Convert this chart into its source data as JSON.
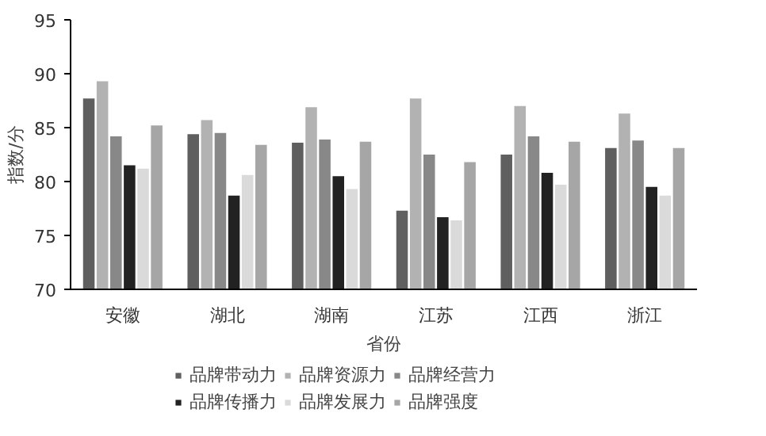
{
  "chart_data": {
    "type": "bar",
    "xlabel": "省份",
    "ylabel": "指数/分",
    "categories": [
      "安徽",
      "湖北",
      "湖南",
      "江苏",
      "江西",
      "浙江"
    ],
    "ylim": [
      70,
      95
    ],
    "yticks": [
      70,
      75,
      80,
      85,
      90,
      95
    ],
    "grid": false,
    "legend": "bottom",
    "series": [
      {
        "name": "品牌带动力",
        "color": "#5f5f5f",
        "values": [
          87.7,
          84.4,
          83.6,
          77.3,
          82.5,
          83.1
        ]
      },
      {
        "name": "品牌资源力",
        "color": "#b2b2b2",
        "values": [
          89.3,
          85.7,
          86.9,
          87.7,
          87.0,
          86.3
        ]
      },
      {
        "name": "品牌经营力",
        "color": "#888888",
        "values": [
          84.2,
          84.5,
          83.9,
          82.5,
          84.2,
          83.8
        ]
      },
      {
        "name": "品牌传播力",
        "color": "#222222",
        "values": [
          81.5,
          78.7,
          80.5,
          76.7,
          80.8,
          79.5
        ]
      },
      {
        "name": "品牌发展力",
        "color": "#dadada",
        "values": [
          81.2,
          80.6,
          79.3,
          76.4,
          79.7,
          78.7
        ]
      },
      {
        "name": "品牌强度",
        "color": "#a6a6a6",
        "values": [
          85.2,
          83.4,
          83.7,
          81.8,
          83.7,
          83.1
        ]
      }
    ]
  }
}
